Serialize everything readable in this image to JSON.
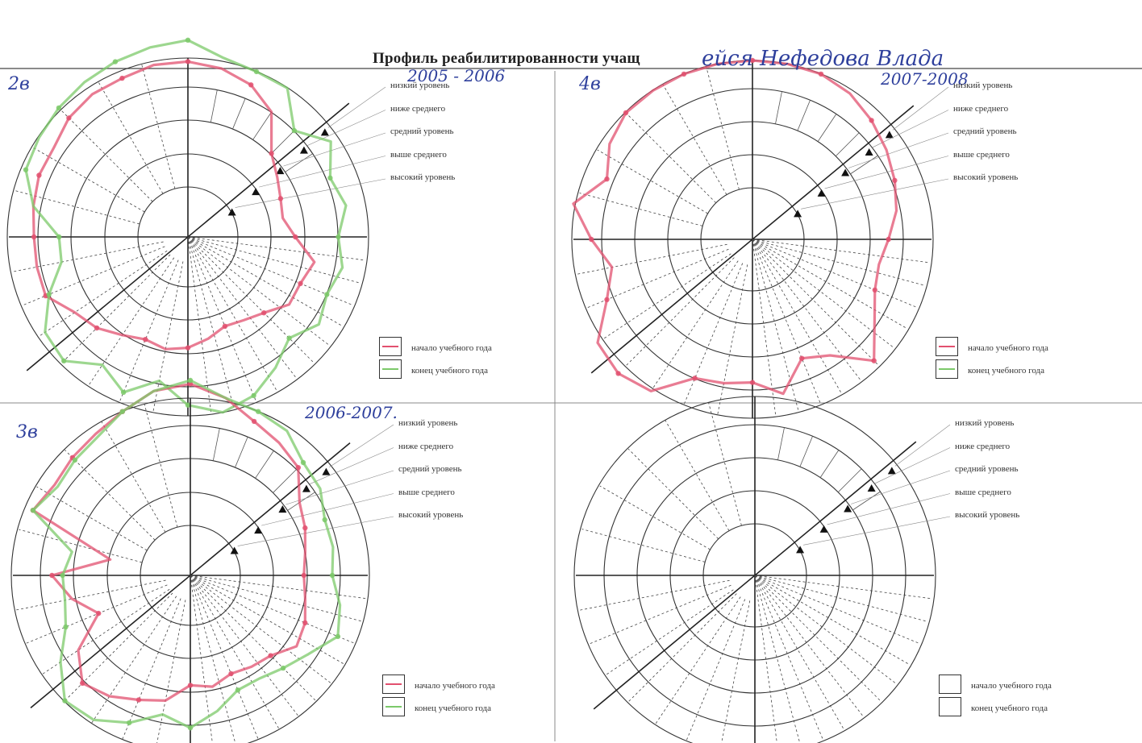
{
  "title": "Профиль реабилитированности учащ",
  "handwriting": {
    "name": "ейся Нефедова Влада"
  },
  "levels": [
    "низкий уровень",
    "ниже среднего",
    "средний уровень",
    "выше среднего",
    "высокий уровень"
  ],
  "legend_keys": {
    "start": "начало учебного года",
    "end": "конец учебного года"
  },
  "colors": {
    "start": "#e2506f",
    "end": "#7cc96a",
    "ink": "#2e3f9c",
    "grid": "#333333"
  },
  "chart_data": [
    {
      "type": "radar",
      "label": "2в",
      "years": "2005 - 2006",
      "legend_style": "colored",
      "axis_range": [
        0,
        5
      ],
      "series": [
        {
          "name": "начало учебного года",
          "values": [
            4.9,
            4.8,
            4.6,
            4.2,
            3.3,
            3.0,
            2.8,
            2.7,
            3.0,
            3.6,
            3.4,
            3.4,
            3.0,
            2.8,
            2.7,
            2.9,
            3.1,
            3.2,
            3.1,
            3.3,
            3.6,
            3.8,
            4.3,
            4.3,
            4.3,
            4.4,
            4.5,
            4.5,
            4.7,
            4.8,
            4.8,
            4.9
          ]
        },
        {
          "name": "конец учебного года",
          "values": [
            5.5,
            5.1,
            5.0,
            5.0,
            4.2,
            4.8,
            4.3,
            4.5,
            4.2,
            4.4,
            4.2,
            4.4,
            4.0,
            4.4,
            4.8,
            5.0,
            4.7,
            4.1,
            4.7,
            4.3,
            4.9,
            4.8,
            4.2,
            3.6,
            3.6,
            4.4,
            4.9,
            5.0,
            5.1,
            5.2,
            5.3,
            5.4
          ]
        }
      ]
    },
    {
      "type": "radar",
      "label": "4в",
      "years": "2007-2008",
      "legend_style": "colored",
      "axis_range": [
        0,
        5
      ],
      "series": [
        {
          "name": "начало учебного года",
          "values": [
            5.0,
            5.0,
            5.0,
            4.9,
            4.7,
            4.5,
            4.3,
            4.1,
            3.8,
            3.6,
            3.7,
            4.1,
            4.8,
            3.9,
            3.6,
            4.4,
            4.0,
            4.1,
            4.2,
            5.1,
            5.3,
            5.2,
            4.4,
            4.0,
            4.5,
            5.1,
            4.4,
            4.8,
            5.0,
            5.0,
            5.0,
            5.0
          ]
        },
        {
          "name": "конец учебного года",
          "values": []
        }
      ]
    },
    {
      "type": "radar",
      "label": "3в",
      "years": "2006-2007.",
      "legend_style": "colored",
      "axis_range": [
        0,
        5
      ],
      "series": [
        {
          "name": "начало учебного года",
          "values": [
            5.4,
            5.1,
            4.7,
            4.5,
            4.3,
            3.7,
            3.5,
            3.3,
            3.2,
            3.3,
            3.5,
            3.6,
            3.2,
            3.1,
            3.0,
            3.2,
            3.1,
            3.6,
            3.8,
            4.1,
            4.3,
            3.8,
            2.8,
            3.4,
            3.9,
            2.3,
            4.8,
            4.6,
            4.7,
            4.8,
            5.0,
            5.3
          ]
        },
        {
          "name": "конец учебного года",
          "values": [
            5.5,
            5.1,
            5.0,
            4.9,
            4.5,
            4.4,
            4.1,
            4.1,
            4.0,
            4.3,
            4.5,
            4.0,
            3.7,
            3.5,
            3.5,
            3.9,
            4.3,
            4.0,
            4.5,
            4.9,
            5.0,
            4.4,
            3.8,
            3.6,
            3.6,
            3.4,
            4.8,
            4.5,
            4.6,
            4.7,
            5.0,
            5.3
          ]
        }
      ]
    },
    {
      "type": "radar",
      "label": "",
      "years": "",
      "legend_style": "empty",
      "axis_range": [
        0,
        5
      ],
      "series": []
    }
  ]
}
